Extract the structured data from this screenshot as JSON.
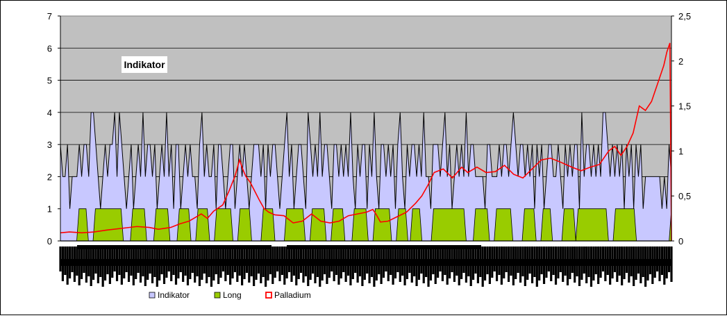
{
  "chart_data": {
    "type": "area",
    "annotation": "Indikator",
    "x_tick_count": 260,
    "left_axis": {
      "min": 0,
      "max": 7,
      "ticks": [
        "0",
        "1",
        "2",
        "3",
        "4",
        "5",
        "6",
        "7"
      ]
    },
    "right_axis": {
      "min": 0,
      "max": 2.5,
      "ticks": [
        "0",
        "0,5",
        "1",
        "1,5",
        "2",
        "2,5"
      ]
    },
    "grid": "horizontal",
    "legend_position": "bottom",
    "colors": {
      "plot_background": "#c0c0c0",
      "indikator_fill": "#c8c8ff",
      "long_fill": "#99cc00",
      "palladium_line": "#ff0000"
    },
    "series": [
      {
        "name": "Indikator",
        "axis": "left",
        "kind": "area",
        "values": [
          3,
          2,
          2,
          3,
          1,
          2,
          2,
          2,
          3,
          2,
          3,
          3,
          2,
          4,
          4,
          3,
          2,
          1,
          2,
          3,
          2,
          3,
          3,
          4,
          2,
          4,
          3,
          2,
          1,
          2,
          3,
          1,
          2,
          3,
          2,
          4,
          2,
          3,
          3,
          2,
          3,
          1,
          2,
          3,
          2,
          4,
          2,
          3,
          1,
          3,
          3,
          1,
          2,
          3,
          2,
          3,
          2,
          2,
          1,
          3,
          4,
          2,
          3,
          2,
          2,
          3,
          1,
          3,
          3,
          2,
          1,
          2,
          3,
          3,
          1,
          2,
          3,
          2,
          3,
          2,
          1,
          2,
          3,
          3,
          3,
          2,
          3,
          1,
          3,
          2,
          3,
          3,
          2,
          1,
          2,
          3,
          4,
          2,
          3,
          1,
          2,
          3,
          3,
          2,
          1,
          4,
          3,
          2,
          3,
          2,
          4,
          2,
          3,
          3,
          2,
          1,
          3,
          3,
          2,
          3,
          2,
          3,
          2,
          4,
          2,
          1,
          3,
          2,
          3,
          3,
          1,
          3,
          2,
          4,
          2,
          1,
          3,
          3,
          2,
          3,
          2,
          3,
          1,
          3,
          4,
          2,
          1,
          3,
          2,
          3,
          3,
          2,
          3,
          2,
          4,
          2,
          2,
          1,
          3,
          3,
          3,
          2,
          3,
          4,
          2,
          3,
          1,
          2,
          3,
          2,
          3,
          2,
          4,
          2,
          3,
          3,
          2,
          2,
          2,
          2,
          1,
          3,
          3,
          2,
          2,
          2,
          3,
          2,
          3,
          3,
          2,
          3,
          4,
          3,
          2,
          3,
          3,
          2,
          3,
          2,
          3,
          1,
          3,
          2,
          3,
          1,
          2,
          3,
          3,
          2,
          2,
          3,
          2,
          1,
          3,
          2,
          3,
          2,
          3,
          3,
          1,
          4,
          2,
          3,
          3,
          2,
          3,
          2,
          3,
          2,
          4,
          4,
          3,
          2,
          3,
          2,
          3,
          2,
          3,
          1,
          3,
          2,
          3,
          1,
          3,
          2,
          3,
          1,
          2,
          2,
          2,
          2,
          2,
          2,
          2,
          1,
          2,
          1,
          3,
          2
        ]
      },
      {
        "name": "Long",
        "axis": "left",
        "kind": "area",
        "values": [
          0,
          0,
          0,
          0,
          0,
          0,
          0,
          0,
          1,
          1,
          1,
          1,
          0,
          0,
          0,
          1,
          1,
          1,
          1,
          1,
          1,
          1,
          1,
          1,
          1,
          1,
          1,
          0,
          0,
          0,
          0,
          1,
          1,
          1,
          1,
          1,
          1,
          0,
          0,
          0,
          0,
          1,
          1,
          1,
          1,
          1,
          1,
          0,
          0,
          0,
          0,
          1,
          1,
          1,
          1,
          1,
          0,
          0,
          0,
          1,
          1,
          1,
          1,
          1,
          0,
          0,
          0,
          1,
          1,
          1,
          1,
          1,
          1,
          1,
          0,
          0,
          0,
          1,
          1,
          1,
          1,
          1,
          0,
          0,
          0,
          0,
          0,
          1,
          1,
          1,
          1,
          1,
          0,
          0,
          0,
          0,
          0,
          1,
          1,
          1,
          1,
          1,
          1,
          1,
          1,
          0,
          0,
          0,
          1,
          1,
          1,
          1,
          1,
          1,
          0,
          0,
          0,
          1,
          1,
          1,
          1,
          1,
          0,
          0,
          0,
          0,
          1,
          1,
          1,
          1,
          1,
          1,
          0,
          0,
          0,
          1,
          1,
          1,
          1,
          1,
          1,
          1,
          0,
          0,
          0,
          1,
          1,
          1,
          1,
          0,
          0,
          1,
          1,
          1,
          1,
          0,
          0,
          0,
          0,
          0,
          1,
          1,
          1,
          1,
          1,
          1,
          1,
          1,
          1,
          1,
          1,
          1,
          1,
          1,
          0,
          0,
          0,
          0,
          1,
          1,
          1,
          1,
          1,
          1,
          0,
          0,
          0,
          1,
          1,
          1,
          1,
          1,
          1,
          1,
          0,
          0,
          0,
          0,
          0,
          1,
          1,
          1,
          1,
          1,
          0,
          0,
          0,
          1,
          1,
          1,
          1,
          0,
          0,
          0,
          0,
          0,
          1,
          1,
          1,
          1,
          1,
          0,
          1,
          1,
          1,
          1,
          1,
          1,
          1,
          1,
          1,
          1,
          1,
          1,
          1,
          0,
          0,
          0,
          1,
          1,
          1,
          1,
          1,
          1,
          1,
          1,
          1,
          0,
          0,
          0,
          0,
          0,
          0,
          0,
          0,
          0,
          0,
          0,
          0,
          0,
          0,
          0,
          1
        ]
      },
      {
        "name": "Palladium",
        "axis": "right",
        "kind": "line",
        "points": [
          [
            0,
            0.09
          ],
          [
            6,
            0.1
          ],
          [
            14,
            0.09
          ],
          [
            22,
            0.1
          ],
          [
            30,
            0.12
          ],
          [
            40,
            0.14
          ],
          [
            50,
            0.16
          ],
          [
            58,
            0.15
          ],
          [
            64,
            0.13
          ],
          [
            72,
            0.15
          ],
          [
            78,
            0.19
          ],
          [
            84,
            0.22
          ],
          [
            88,
            0.26
          ],
          [
            92,
            0.3
          ],
          [
            96,
            0.25
          ],
          [
            100,
            0.33
          ],
          [
            106,
            0.4
          ],
          [
            110,
            0.55
          ],
          [
            114,
            0.72
          ],
          [
            117,
            0.9
          ],
          [
            119,
            0.8
          ],
          [
            121,
            0.72
          ],
          [
            124,
            0.65
          ],
          [
            127,
            0.55
          ],
          [
            130,
            0.45
          ],
          [
            133,
            0.36
          ],
          [
            136,
            0.32
          ],
          [
            140,
            0.29
          ],
          [
            146,
            0.28
          ],
          [
            152,
            0.2
          ],
          [
            158,
            0.22
          ],
          [
            164,
            0.3
          ],
          [
            170,
            0.22
          ],
          [
            176,
            0.2
          ],
          [
            182,
            0.22
          ],
          [
            188,
            0.28
          ],
          [
            194,
            0.3
          ],
          [
            200,
            0.32
          ],
          [
            204,
            0.35
          ],
          [
            206,
            0.3
          ],
          [
            209,
            0.21
          ],
          [
            214,
            0.22
          ],
          [
            220,
            0.27
          ],
          [
            226,
            0.32
          ],
          [
            232,
            0.42
          ],
          [
            236,
            0.5
          ],
          [
            240,
            0.62
          ],
          [
            244,
            0.76
          ],
          [
            250,
            0.8
          ],
          [
            256,
            0.7
          ],
          [
            262,
            0.82
          ],
          [
            266,
            0.76
          ],
          [
            272,
            0.82
          ],
          [
            278,
            0.76
          ],
          [
            284,
            0.77
          ],
          [
            290,
            0.84
          ],
          [
            296,
            0.74
          ],
          [
            302,
            0.7
          ],
          [
            308,
            0.8
          ],
          [
            314,
            0.9
          ],
          [
            320,
            0.92
          ],
          [
            326,
            0.88
          ],
          [
            330,
            0.85
          ],
          [
            334,
            0.82
          ],
          [
            340,
            0.78
          ],
          [
            346,
            0.82
          ],
          [
            352,
            0.85
          ],
          [
            358,
            1.0
          ],
          [
            362,
            1.05
          ],
          [
            366,
            0.95
          ],
          [
            370,
            1.05
          ],
          [
            374,
            1.2
          ],
          [
            378,
            1.5
          ],
          [
            382,
            1.45
          ],
          [
            386,
            1.55
          ],
          [
            390,
            1.75
          ],
          [
            394,
            1.95
          ],
          [
            396,
            2.1
          ],
          [
            398,
            2.2
          ],
          [
            399,
            0.0
          ]
        ]
      }
    ]
  }
}
